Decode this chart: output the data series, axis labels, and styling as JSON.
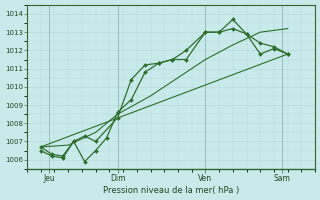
{
  "xlabel": "Pression niveau de la mer( hPa )",
  "ylim": [
    1005.5,
    1014.5
  ],
  "xlim": [
    -0.5,
    10.0
  ],
  "yticks": [
    1006,
    1007,
    1008,
    1009,
    1010,
    1011,
    1012,
    1013,
    1014
  ],
  "bg_color": "#c8eaea",
  "grid_color_minor": "#b8d8d8",
  "grid_color_major": "#9cbcbc",
  "line_color": "#2d6e2d",
  "xtick_labels": [
    "Jeu",
    "Dim",
    "Ven",
    "Sam"
  ],
  "xtick_positions": [
    0.3,
    2.8,
    6.0,
    8.8
  ],
  "vline_positions": [
    0.3,
    2.8,
    6.0,
    8.8
  ],
  "series1_x": [
    0.0,
    0.4,
    0.8,
    1.2,
    1.6,
    2.0,
    2.8,
    3.3,
    3.8,
    4.3,
    4.8,
    5.3,
    6.0,
    6.5,
    7.0,
    7.5,
    8.0,
    8.5,
    9.0
  ],
  "series1_y": [
    1006.7,
    1006.3,
    1006.2,
    1007.0,
    1007.3,
    1007.0,
    1008.3,
    1010.4,
    1011.2,
    1011.3,
    1011.5,
    1011.5,
    1013.0,
    1013.0,
    1013.7,
    1012.9,
    1012.4,
    1012.2,
    1011.8
  ],
  "series2_x": [
    0.0,
    0.4,
    0.8,
    1.2,
    1.6,
    2.0,
    2.4,
    2.8,
    3.3,
    3.8,
    4.3,
    4.8,
    5.3,
    6.0,
    6.5,
    7.0,
    7.5,
    8.0,
    8.5,
    9.0
  ],
  "series2_y": [
    1006.5,
    1006.2,
    1006.1,
    1007.0,
    1005.9,
    1006.5,
    1007.2,
    1008.6,
    1009.3,
    1010.8,
    1011.3,
    1011.5,
    1012.0,
    1013.0,
    1013.0,
    1013.2,
    1012.9,
    1011.8,
    1012.1,
    1011.8
  ],
  "series3_x": [
    0.0,
    1.0,
    2.0,
    2.8,
    4.0,
    5.0,
    6.0,
    7.0,
    8.0,
    9.0
  ],
  "series3_y": [
    1006.7,
    1006.8,
    1007.5,
    1008.5,
    1009.5,
    1010.5,
    1011.5,
    1012.3,
    1013.0,
    1013.2
  ],
  "series4_x": [
    0.0,
    9.0
  ],
  "series4_y": [
    1006.7,
    1011.8
  ]
}
